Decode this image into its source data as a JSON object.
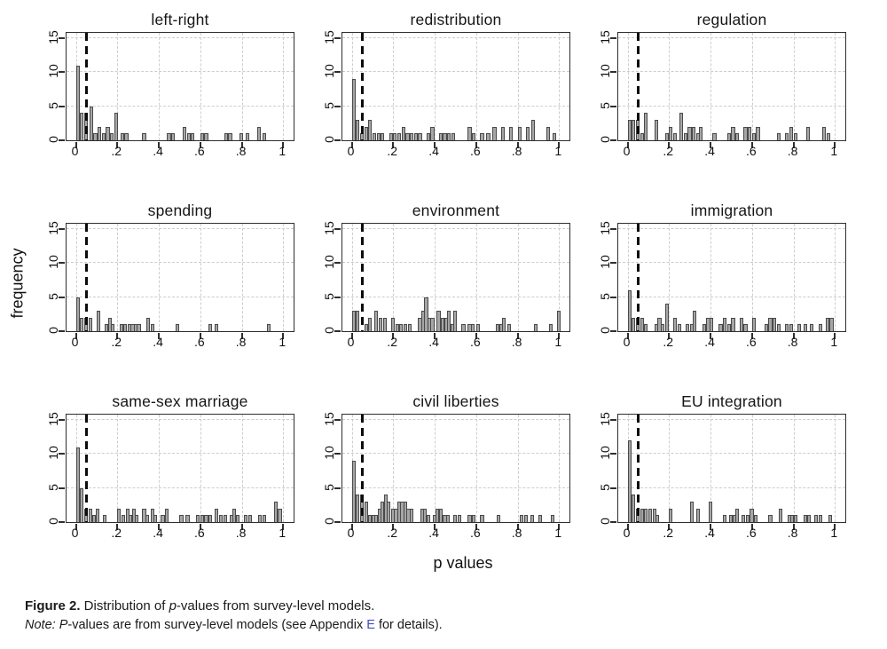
{
  "figure": {
    "y_axis_title": "frequency",
    "x_axis_title": "p values"
  },
  "caption": {
    "figure_label": "Figure 2.",
    "text_1": " Distribution of ",
    "italic_p": "p",
    "text_2": "-values from survey-level models.",
    "note_label": "Note:",
    "note_text_1": " ",
    "note_italic_p": "P",
    "note_text_2": "-values are from survey-level models (see Appendix ",
    "note_link": "E",
    "note_text_3": " for details).",
    "link_color": "#3f51b5"
  },
  "chart_data": {
    "type": "bar",
    "subtype": "histogram-grid",
    "layout": "3 columns x 3 rows, shared axis style",
    "title": "Distribution of p-values from survey-level models",
    "xlabel": "p values",
    "ylabel": "frequency",
    "x_ticks": [
      "0",
      ".2",
      ".4",
      ".6",
      ".8",
      "1"
    ],
    "x_tick_values": [
      0,
      0.2,
      0.4,
      0.6,
      0.8,
      1
    ],
    "y_ticks": [
      "0",
      "5",
      "10",
      "15"
    ],
    "y_tick_values": [
      0,
      5,
      10,
      15
    ],
    "xlim": [
      -0.045,
      1.05
    ],
    "ylim": [
      0,
      15.8
    ],
    "grid": true,
    "bin_width": 0.018,
    "significance_line_x": 0.05,
    "bar_fill": "#a6a6a6",
    "bar_border": "#4a4a4a",
    "gridline_color": "#cdcdcd",
    "panels": [
      {
        "title": "left-right",
        "bars": [
          [
            0.0,
            11
          ],
          [
            0.02,
            4
          ],
          [
            0.04,
            4
          ],
          [
            0.065,
            5
          ],
          [
            0.085,
            1
          ],
          [
            0.105,
            2
          ],
          [
            0.125,
            1
          ],
          [
            0.145,
            2
          ],
          [
            0.165,
            1
          ],
          [
            0.185,
            4
          ],
          [
            0.215,
            1
          ],
          [
            0.235,
            1
          ],
          [
            0.32,
            1
          ],
          [
            0.44,
            1
          ],
          [
            0.46,
            1
          ],
          [
            0.515,
            2
          ],
          [
            0.535,
            1
          ],
          [
            0.555,
            1
          ],
          [
            0.6,
            1
          ],
          [
            0.62,
            1
          ],
          [
            0.715,
            1
          ],
          [
            0.735,
            1
          ],
          [
            0.79,
            1
          ],
          [
            0.82,
            1
          ],
          [
            0.875,
            2
          ],
          [
            0.9,
            1
          ]
        ]
      },
      {
        "title": "redistribution",
        "bars": [
          [
            0.0,
            9
          ],
          [
            0.02,
            3
          ],
          [
            0.04,
            1
          ],
          [
            0.06,
            2
          ],
          [
            0.08,
            3
          ],
          [
            0.1,
            1
          ],
          [
            0.12,
            1
          ],
          [
            0.14,
            1
          ],
          [
            0.18,
            1
          ],
          [
            0.2,
            1
          ],
          [
            0.22,
            1
          ],
          [
            0.24,
            2
          ],
          [
            0.26,
            1
          ],
          [
            0.28,
            1
          ],
          [
            0.3,
            1
          ],
          [
            0.32,
            1
          ],
          [
            0.36,
            1
          ],
          [
            0.38,
            2
          ],
          [
            0.42,
            1
          ],
          [
            0.44,
            1
          ],
          [
            0.46,
            1
          ],
          [
            0.48,
            1
          ],
          [
            0.56,
            2
          ],
          [
            0.58,
            1
          ],
          [
            0.62,
            1
          ],
          [
            0.65,
            1
          ],
          [
            0.68,
            2
          ],
          [
            0.72,
            2
          ],
          [
            0.76,
            2
          ],
          [
            0.8,
            2
          ],
          [
            0.84,
            2
          ],
          [
            0.865,
            3
          ],
          [
            0.94,
            2
          ],
          [
            0.97,
            1
          ]
        ]
      },
      {
        "title": "regulation",
        "bars": [
          [
            0.0,
            3
          ],
          [
            0.02,
            3
          ],
          [
            0.04,
            3
          ],
          [
            0.06,
            1
          ],
          [
            0.08,
            4
          ],
          [
            0.13,
            3
          ],
          [
            0.18,
            1
          ],
          [
            0.2,
            2
          ],
          [
            0.22,
            1
          ],
          [
            0.25,
            4
          ],
          [
            0.27,
            1
          ],
          [
            0.29,
            2
          ],
          [
            0.31,
            2
          ],
          [
            0.33,
            1
          ],
          [
            0.345,
            2
          ],
          [
            0.41,
            1
          ],
          [
            0.48,
            1
          ],
          [
            0.5,
            2
          ],
          [
            0.52,
            1
          ],
          [
            0.56,
            2
          ],
          [
            0.58,
            2
          ],
          [
            0.6,
            1
          ],
          [
            0.62,
            2
          ],
          [
            0.72,
            1
          ],
          [
            0.76,
            1
          ],
          [
            0.78,
            2
          ],
          [
            0.8,
            1
          ],
          [
            0.86,
            2
          ],
          [
            0.94,
            2
          ],
          [
            0.96,
            1
          ]
        ]
      },
      {
        "title": "spending",
        "bars": [
          [
            0.0,
            5
          ],
          [
            0.02,
            2
          ],
          [
            0.04,
            2
          ],
          [
            0.06,
            2
          ],
          [
            0.1,
            3
          ],
          [
            0.14,
            1
          ],
          [
            0.155,
            2
          ],
          [
            0.17,
            1
          ],
          [
            0.21,
            1
          ],
          [
            0.23,
            1
          ],
          [
            0.25,
            1
          ],
          [
            0.265,
            1
          ],
          [
            0.28,
            1
          ],
          [
            0.295,
            1
          ],
          [
            0.34,
            2
          ],
          [
            0.36,
            1
          ],
          [
            0.48,
            1
          ],
          [
            0.64,
            1
          ],
          [
            0.67,
            1
          ],
          [
            0.92,
            1
          ]
        ]
      },
      {
        "title": "environment",
        "bars": [
          [
            0.0,
            3
          ],
          [
            0.02,
            3
          ],
          [
            0.06,
            1
          ],
          [
            0.08,
            2
          ],
          [
            0.11,
            3
          ],
          [
            0.13,
            2
          ],
          [
            0.15,
            2
          ],
          [
            0.19,
            2
          ],
          [
            0.21,
            1
          ],
          [
            0.23,
            1
          ],
          [
            0.25,
            1
          ],
          [
            0.27,
            1
          ],
          [
            0.32,
            2
          ],
          [
            0.335,
            3
          ],
          [
            0.35,
            5
          ],
          [
            0.365,
            2
          ],
          [
            0.38,
            2
          ],
          [
            0.41,
            3
          ],
          [
            0.43,
            2
          ],
          [
            0.445,
            2
          ],
          [
            0.46,
            3
          ],
          [
            0.475,
            1
          ],
          [
            0.49,
            3
          ],
          [
            0.53,
            1
          ],
          [
            0.56,
            1
          ],
          [
            0.575,
            1
          ],
          [
            0.6,
            1
          ],
          [
            0.695,
            1
          ],
          [
            0.71,
            1
          ],
          [
            0.725,
            2
          ],
          [
            0.75,
            1
          ],
          [
            0.88,
            1
          ],
          [
            0.95,
            1
          ],
          [
            0.99,
            3
          ]
        ]
      },
      {
        "title": "immigration",
        "bars": [
          [
            0.0,
            6
          ],
          [
            0.02,
            2
          ],
          [
            0.04,
            2
          ],
          [
            0.06,
            2
          ],
          [
            0.08,
            1
          ],
          [
            0.13,
            1
          ],
          [
            0.145,
            2
          ],
          [
            0.16,
            1
          ],
          [
            0.18,
            4
          ],
          [
            0.22,
            2
          ],
          [
            0.24,
            1
          ],
          [
            0.28,
            1
          ],
          [
            0.3,
            1
          ],
          [
            0.315,
            3
          ],
          [
            0.36,
            1
          ],
          [
            0.38,
            2
          ],
          [
            0.395,
            2
          ],
          [
            0.44,
            1
          ],
          [
            0.46,
            2
          ],
          [
            0.48,
            1
          ],
          [
            0.5,
            2
          ],
          [
            0.54,
            2
          ],
          [
            0.56,
            1
          ],
          [
            0.6,
            2
          ],
          [
            0.66,
            1
          ],
          [
            0.68,
            2
          ],
          [
            0.7,
            2
          ],
          [
            0.72,
            1
          ],
          [
            0.76,
            1
          ],
          [
            0.78,
            1
          ],
          [
            0.82,
            1
          ],
          [
            0.85,
            1
          ],
          [
            0.88,
            1
          ],
          [
            0.92,
            1
          ],
          [
            0.955,
            2
          ],
          [
            0.975,
            2
          ]
        ]
      },
      {
        "title": "same-sex marriage",
        "bars": [
          [
            0.0,
            11
          ],
          [
            0.02,
            5
          ],
          [
            0.04,
            2
          ],
          [
            0.06,
            2
          ],
          [
            0.08,
            1
          ],
          [
            0.095,
            2
          ],
          [
            0.13,
            1
          ],
          [
            0.2,
            2
          ],
          [
            0.22,
            1
          ],
          [
            0.24,
            2
          ],
          [
            0.255,
            1
          ],
          [
            0.27,
            2
          ],
          [
            0.285,
            1
          ],
          [
            0.32,
            2
          ],
          [
            0.335,
            1
          ],
          [
            0.36,
            2
          ],
          [
            0.375,
            1
          ],
          [
            0.41,
            1
          ],
          [
            0.43,
            2
          ],
          [
            0.5,
            1
          ],
          [
            0.53,
            1
          ],
          [
            0.58,
            1
          ],
          [
            0.6,
            1
          ],
          [
            0.62,
            1
          ],
          [
            0.64,
            1
          ],
          [
            0.67,
            2
          ],
          [
            0.69,
            1
          ],
          [
            0.71,
            1
          ],
          [
            0.74,
            1
          ],
          [
            0.755,
            2
          ],
          [
            0.77,
            1
          ],
          [
            0.81,
            1
          ],
          [
            0.83,
            1
          ],
          [
            0.88,
            1
          ],
          [
            0.9,
            1
          ],
          [
            0.955,
            3
          ],
          [
            0.975,
            2
          ]
        ]
      },
      {
        "title": "civil liberties",
        "bars": [
          [
            0.0,
            9
          ],
          [
            0.02,
            4
          ],
          [
            0.04,
            4
          ],
          [
            0.06,
            3
          ],
          [
            0.08,
            1
          ],
          [
            0.095,
            1
          ],
          [
            0.11,
            1
          ],
          [
            0.125,
            2
          ],
          [
            0.14,
            3
          ],
          [
            0.155,
            4
          ],
          [
            0.17,
            3
          ],
          [
            0.19,
            2
          ],
          [
            0.205,
            2
          ],
          [
            0.22,
            3
          ],
          [
            0.235,
            3
          ],
          [
            0.25,
            3
          ],
          [
            0.265,
            2
          ],
          [
            0.28,
            2
          ],
          [
            0.33,
            2
          ],
          [
            0.345,
            2
          ],
          [
            0.36,
            1
          ],
          [
            0.39,
            1
          ],
          [
            0.405,
            2
          ],
          [
            0.42,
            2
          ],
          [
            0.44,
            1
          ],
          [
            0.455,
            1
          ],
          [
            0.49,
            1
          ],
          [
            0.51,
            1
          ],
          [
            0.56,
            1
          ],
          [
            0.58,
            1
          ],
          [
            0.62,
            1
          ],
          [
            0.7,
            1
          ],
          [
            0.81,
            1
          ],
          [
            0.83,
            1
          ],
          [
            0.86,
            1
          ],
          [
            0.9,
            1
          ],
          [
            0.96,
            1
          ]
        ]
      },
      {
        "title": "EU integration",
        "bars": [
          [
            0.0,
            12
          ],
          [
            0.02,
            4
          ],
          [
            0.04,
            2
          ],
          [
            0.06,
            2
          ],
          [
            0.08,
            2
          ],
          [
            0.1,
            2
          ],
          [
            0.12,
            2
          ],
          [
            0.135,
            1
          ],
          [
            0.2,
            2
          ],
          [
            0.3,
            3
          ],
          [
            0.33,
            2
          ],
          [
            0.39,
            3
          ],
          [
            0.46,
            1
          ],
          [
            0.49,
            1
          ],
          [
            0.505,
            1
          ],
          [
            0.52,
            2
          ],
          [
            0.55,
            1
          ],
          [
            0.57,
            1
          ],
          [
            0.59,
            2
          ],
          [
            0.61,
            1
          ],
          [
            0.68,
            1
          ],
          [
            0.73,
            2
          ],
          [
            0.77,
            1
          ],
          [
            0.785,
            1
          ],
          [
            0.8,
            1
          ],
          [
            0.85,
            1
          ],
          [
            0.865,
            1
          ],
          [
            0.9,
            1
          ],
          [
            0.92,
            1
          ],
          [
            0.97,
            1
          ]
        ]
      }
    ]
  }
}
